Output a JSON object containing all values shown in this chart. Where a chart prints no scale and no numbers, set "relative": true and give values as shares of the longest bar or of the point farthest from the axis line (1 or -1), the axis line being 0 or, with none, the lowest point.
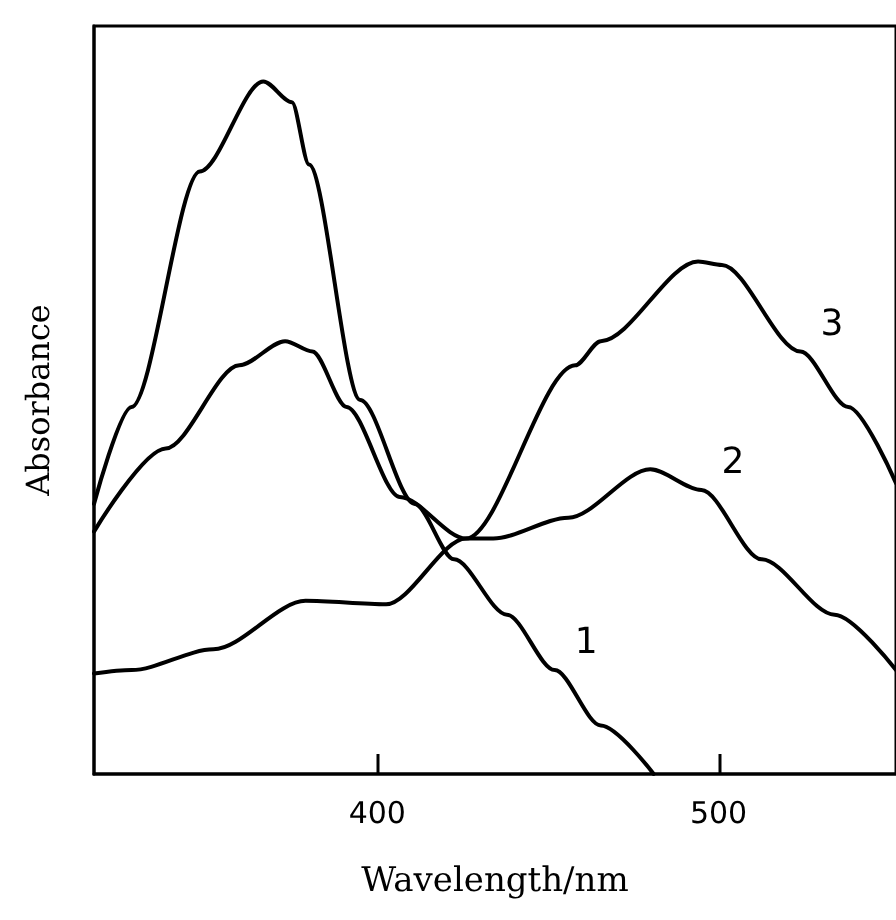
{
  "chart_data": {
    "type": "line",
    "xlabel": "Wavelength/nm",
    "ylabel": "Absorbance",
    "relative": true,
    "xlim": [
      317,
      552
    ],
    "xticks": [
      400,
      500
    ],
    "grid": false,
    "marker": "none",
    "line_style": "solid",
    "series": [
      {
        "name": "1",
        "color": "#000000",
        "x": [
          317,
          328,
          348,
          366.6,
          375,
          380,
          395,
          411,
          422.5,
          438,
          452,
          465.5,
          481
        ],
        "values": [
          0.39,
          0.53,
          0.87,
          1.0,
          0.97,
          0.88,
          0.54,
          0.39,
          0.31,
          0.23,
          0.15,
          0.07,
          0
        ]
      },
      {
        "name": "2",
        "color": "#000000",
        "x": [
          317,
          338,
          359.6,
          373,
          381,
          391,
          406.6,
          426,
          434,
          456,
          480,
          495,
          512.6,
          534,
          552
        ],
        "values": [
          0.35,
          0.47,
          0.59,
          0.625,
          0.61,
          0.53,
          0.4,
          0.34,
          0.34,
          0.37,
          0.44,
          0.41,
          0.31,
          0.23,
          0.15
        ]
      },
      {
        "name": "3",
        "color": "#000000",
        "x": [
          317,
          328,
          352,
          379,
          402.6,
          426,
          458,
          465.5,
          494,
          501,
          524,
          538,
          552
        ],
        "values": [
          0.145,
          0.15,
          0.18,
          0.25,
          0.245,
          0.34,
          0.59,
          0.625,
          0.74,
          0.735,
          0.61,
          0.53,
          0.42
        ]
      }
    ]
  }
}
